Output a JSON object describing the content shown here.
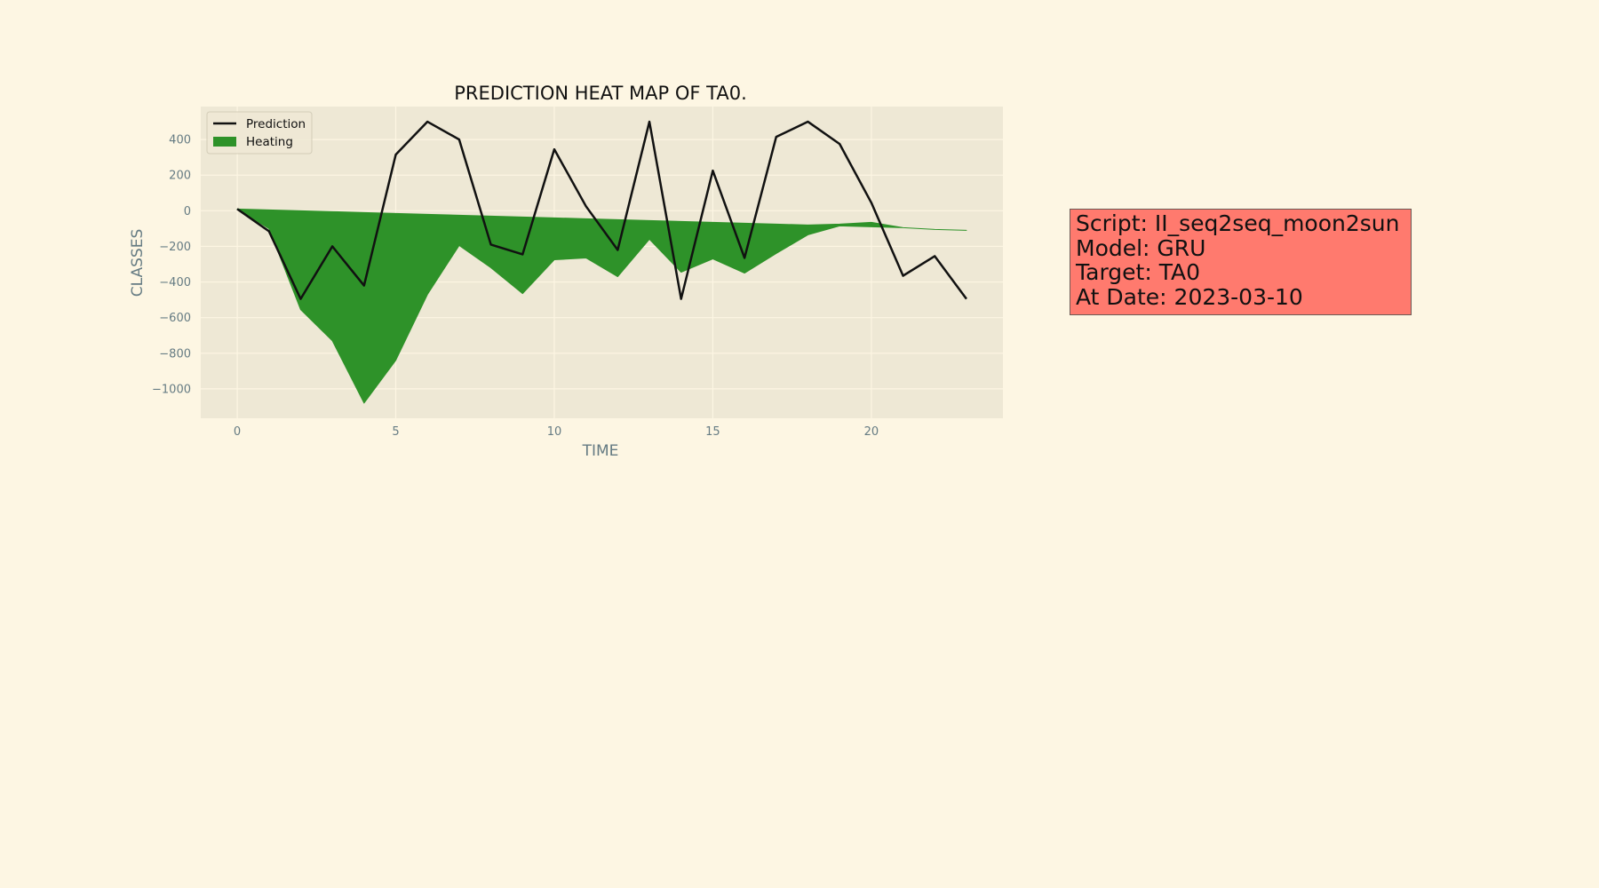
{
  "chart_data": {
    "type": "line",
    "title": "PREDICTION HEAT MAP OF TA0.",
    "xlabel": "TIME",
    "ylabel": "CLASSES",
    "xlim": [
      -1.15,
      24.15
    ],
    "ylim": [
      -1165,
      585
    ],
    "xticks": [
      0,
      5,
      10,
      15,
      20
    ],
    "yticks": [
      400,
      200,
      0,
      -200,
      -400,
      -600,
      -800,
      -1000
    ],
    "ytick_labels": [
      "400",
      "200",
      "0",
      "−200",
      "−400",
      "−600",
      "−800",
      "−1000"
    ],
    "grid": true,
    "legend_position": "top-left",
    "colors": {
      "background": "#fdf6e3",
      "axes_background": "#eee8d5",
      "grid": "#fdf6e3",
      "prediction": "#111111",
      "heating": "#2e9229"
    },
    "x": [
      0,
      1,
      2,
      3,
      4,
      5,
      6,
      7,
      8,
      9,
      10,
      11,
      12,
      13,
      14,
      15,
      16,
      17,
      18,
      19,
      20,
      21,
      22,
      23
    ],
    "series": [
      {
        "name": "Prediction",
        "kind": "line",
        "values": [
          10,
          -115,
          -495,
          -200,
          -420,
          315,
          500,
          400,
          -190,
          -245,
          345,
          25,
          -220,
          500,
          -495,
          225,
          -265,
          415,
          500,
          375,
          45,
          -365,
          -255,
          -495
        ]
      },
      {
        "name": "Heating",
        "kind": "fill_between",
        "upper": [
          10,
          5,
          0,
          -5,
          -10,
          -15,
          -20,
          -25,
          -30,
          -35,
          -40,
          -45,
          -50,
          -55,
          -60,
          -65,
          -70,
          -75,
          -80,
          -75,
          -65,
          -95,
          -105,
          -110
        ],
        "lower": [
          10,
          -100,
          -555,
          -730,
          -1080,
          -840,
          -470,
          -195,
          -320,
          -465,
          -275,
          -265,
          -370,
          -160,
          -345,
          -270,
          -350,
          -240,
          -135,
          -85,
          -90,
          -95,
          -105,
          -110
        ]
      }
    ]
  },
  "info_box": {
    "lines": [
      "Script: II_seq2seq_moon2sun",
      "Model: GRU",
      "Target: TA0",
      "At Date: 2023-03-10"
    ],
    "background": "#ff7a6e"
  }
}
